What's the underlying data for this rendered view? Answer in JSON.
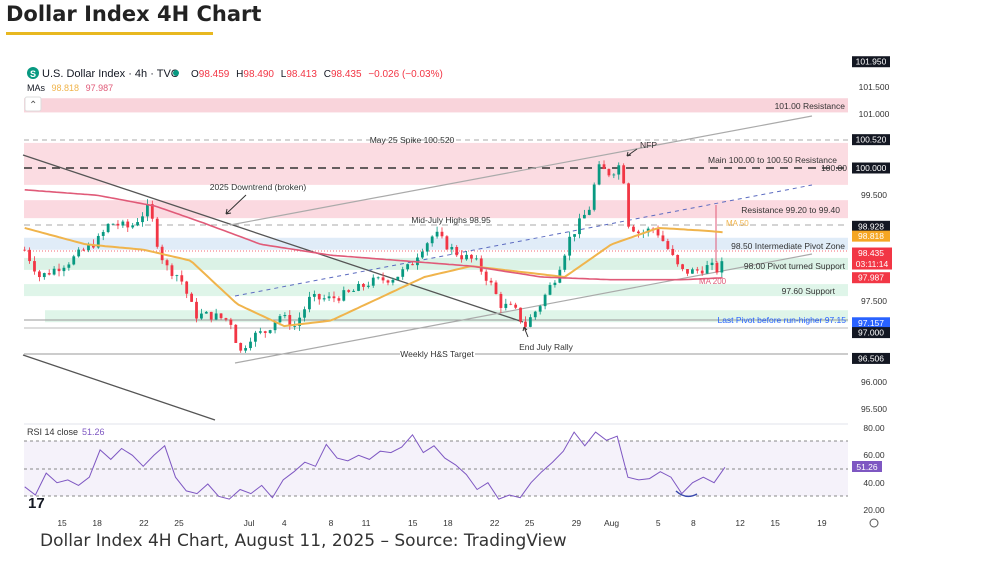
{
  "page": {
    "title": "Dollar Index 4H Chart",
    "caption": "Dollar Index 4H Chart, August 11, 2025 – Source: TradingView"
  },
  "header": {
    "symbol_badge": "S",
    "symbol": "U.S. Dollar Index · 4h · TVC",
    "open_label": "O",
    "open": "98.459",
    "high_label": "H",
    "high": "98.490",
    "low_label": "L",
    "low": "98.413",
    "close_label": "C",
    "close": "98.435",
    "change": "−0.026 (−0.03%)",
    "mas_label": "MAs",
    "ma50": "98.818",
    "ma200": "97.987",
    "collapse_glyph": "⌃"
  },
  "colors": {
    "up": "#089981",
    "down": "#f23645",
    "ma50": "#f0b44c",
    "ma200": "#e05a78",
    "rsi": "#7e57c2",
    "axis_dark": "#131722",
    "pivot_blue": "#2962ff"
  },
  "annotations": {
    "r101": "101.00 Resistance",
    "may25": "May 25 Spike 100.520",
    "nfp": "NFP",
    "main_res": "Main 100.00 to 100.50 Resistance",
    "line100": "100.00",
    "downtrend": "2025 Downtrend (broken)",
    "res992": "Resistance 99.20 to 99.40",
    "midjuly": "Mid-July Highs 98.95",
    "ma50": "MA 50",
    "pivot_zone": "98.50 Intermediate Pivot Zone",
    "pivot_support": "98.00 Pivot turned Support",
    "ma200": "MA 200",
    "s976": "97.60 Support",
    "last_pivot": "Last Pivot before run-higher 97.15",
    "end_july": "End July Rally",
    "hs_target": "Weekly H&S Target"
  },
  "price_axis": {
    "plain": [
      "101.500",
      "101.000",
      "99.500",
      "97.500",
      "96.000",
      "95.500"
    ],
    "boxed": {
      "p101950": "101.950",
      "p100520": "100.520",
      "p100000": "100.000",
      "p98928": "98.928",
      "p98818": "98.818",
      "last": "98.435",
      "countdown": "03:11:14",
      "p97987": "97.987",
      "p97157": "97.157",
      "p97000": "97.000",
      "p96506": "96.506"
    }
  },
  "rsi": {
    "label": "RSI 14 close",
    "value": "51.26",
    "axis": [
      "80.00",
      "60.00",
      "40.00",
      "20.00"
    ]
  },
  "chart_data": {
    "type": "candlestick",
    "title": "U.S. Dollar Index · 4h · TVC",
    "xlabel": "",
    "ylabel": "",
    "ylim": [
      95.3,
      102.0
    ],
    "x_unit": "calendar days since Jun 12, 2025",
    "x_ticks": [
      {
        "label": "15",
        "day": 3
      },
      {
        "label": "18",
        "day": 6
      },
      {
        "label": "22",
        "day": 10
      },
      {
        "label": "25",
        "day": 13
      },
      {
        "label": "Jul",
        "day": 19
      },
      {
        "label": "4",
        "day": 22
      },
      {
        "label": "8",
        "day": 26
      },
      {
        "label": "11",
        "day": 29
      },
      {
        "label": "15",
        "day": 33
      },
      {
        "label": "18",
        "day": 36
      },
      {
        "label": "22",
        "day": 40
      },
      {
        "label": "25",
        "day": 43
      },
      {
        "label": "29",
        "day": 47
      },
      {
        "label": "Aug",
        "day": 50
      },
      {
        "label": "5",
        "day": 54
      },
      {
        "label": "8",
        "day": 57
      },
      {
        "label": "12",
        "day": 61
      },
      {
        "label": "15",
        "day": 64
      },
      {
        "label": "19",
        "day": 68
      }
    ],
    "close_path": [
      [
        -0.2,
        98.5
      ],
      [
        1.1,
        98.0
      ],
      [
        3.7,
        98.3
      ],
      [
        6.2,
        98.7
      ],
      [
        7.1,
        99.0
      ],
      [
        8.8,
        98.9
      ],
      [
        10.5,
        99.3
      ],
      [
        10.9,
        98.8
      ],
      [
        11.8,
        98.2
      ],
      [
        13.1,
        98.0
      ],
      [
        14.4,
        97.3
      ],
      [
        15.7,
        97.3
      ],
      [
        17.4,
        97.2
      ],
      [
        18.2,
        96.6
      ],
      [
        19.1,
        96.9
      ],
      [
        20.4,
        97.0
      ],
      [
        21.6,
        97.3
      ],
      [
        22.9,
        97.1
      ],
      [
        24.2,
        97.6
      ],
      [
        25.9,
        97.6
      ],
      [
        27.6,
        97.7
      ],
      [
        29.3,
        97.9
      ],
      [
        31.5,
        98.0
      ],
      [
        32.8,
        98.2
      ],
      [
        33.6,
        98.5
      ],
      [
        34.9,
        98.8
      ],
      [
        35.8,
        98.6
      ],
      [
        37.0,
        98.4
      ],
      [
        38.3,
        98.3
      ],
      [
        39.6,
        97.9
      ],
      [
        40.5,
        97.5
      ],
      [
        41.7,
        97.4
      ],
      [
        42.6,
        97.1
      ],
      [
        43.9,
        97.5
      ],
      [
        45.2,
        98.0
      ],
      [
        46.4,
        98.7
      ],
      [
        47.3,
        99.0
      ],
      [
        48.2,
        99.3
      ],
      [
        48.8,
        100.0
      ],
      [
        49.9,
        99.9
      ],
      [
        50.9,
        100.1
      ],
      [
        51.4,
        99.0
      ],
      [
        52.4,
        98.8
      ],
      [
        53.7,
        98.9
      ],
      [
        54.6,
        98.6
      ],
      [
        55.9,
        98.1
      ],
      [
        57.1,
        98.1
      ],
      [
        58.4,
        98.2
      ],
      [
        59.3,
        98.1
      ],
      [
        59.7,
        98.435
      ]
    ],
    "series": [
      {
        "name": "MA 50",
        "points": [
          [
            -0.2,
            98.9
          ],
          [
            5,
            98.6
          ],
          [
            10,
            98.5
          ],
          [
            14,
            98.3
          ],
          [
            18,
            97.5
          ],
          [
            22,
            97.1
          ],
          [
            26,
            97.2
          ],
          [
            30,
            97.6
          ],
          [
            34,
            98.0
          ],
          [
            38,
            98.2
          ],
          [
            42,
            98.1
          ],
          [
            46,
            98.0
          ],
          [
            50,
            98.6
          ],
          [
            54,
            98.9
          ],
          [
            58,
            98.85
          ],
          [
            59.7,
            98.818
          ]
        ]
      },
      {
        "name": "MA 200",
        "points": [
          [
            -0.2,
            99.6
          ],
          [
            6,
            99.5
          ],
          [
            11,
            99.3
          ],
          [
            15,
            99.0
          ],
          [
            20,
            98.6
          ],
          [
            26,
            98.4
          ],
          [
            32,
            98.3
          ],
          [
            38,
            98.2
          ],
          [
            44,
            98.0
          ],
          [
            50,
            97.95
          ],
          [
            56,
            97.95
          ],
          [
            59.7,
            97.987
          ]
        ]
      }
    ],
    "zones": [
      {
        "name": "101.00 Resistance",
        "from": 101.02,
        "to": 101.28
      },
      {
        "name": "Main 100.00 to 100.50 Resistance",
        "from": 99.69,
        "to": 100.46
      },
      {
        "name": "Resistance 99.20 to 99.40",
        "from": 99.08,
        "to": 99.41
      },
      {
        "name": "98.50 Intermediate Pivot Zone",
        "from": 98.5,
        "to": 98.72
      },
      {
        "name": "98.00 Pivot turned Support",
        "from": 98.13,
        "to": 98.35
      },
      {
        "name": "97.60 Support",
        "from": 97.65,
        "to": 97.87
      },
      {
        "name": "Last Pivot before run-higher 97.15",
        "from": 97.17,
        "to": 97.39
      }
    ],
    "rsi_series": {
      "name": "RSI 14 close",
      "ylim": [
        20,
        80
      ],
      "start_day": -0.2,
      "end_day": 59.7,
      "values": [
        37,
        31,
        47,
        40,
        42,
        38,
        44,
        64,
        57,
        65,
        60,
        52,
        60,
        67,
        44,
        34,
        32,
        39,
        30,
        28,
        35,
        32,
        38,
        29,
        42,
        48,
        55,
        52,
        68,
        58,
        56,
        60,
        57,
        63,
        62,
        66,
        75,
        62,
        67,
        58,
        53,
        46,
        35,
        40,
        28,
        31,
        29,
        40,
        48,
        55,
        63,
        77,
        67,
        77,
        71,
        74,
        44,
        42,
        43,
        48,
        44,
        32,
        40,
        44,
        40,
        51.26
      ],
      "bands": [
        30,
        50,
        70
      ]
    }
  }
}
